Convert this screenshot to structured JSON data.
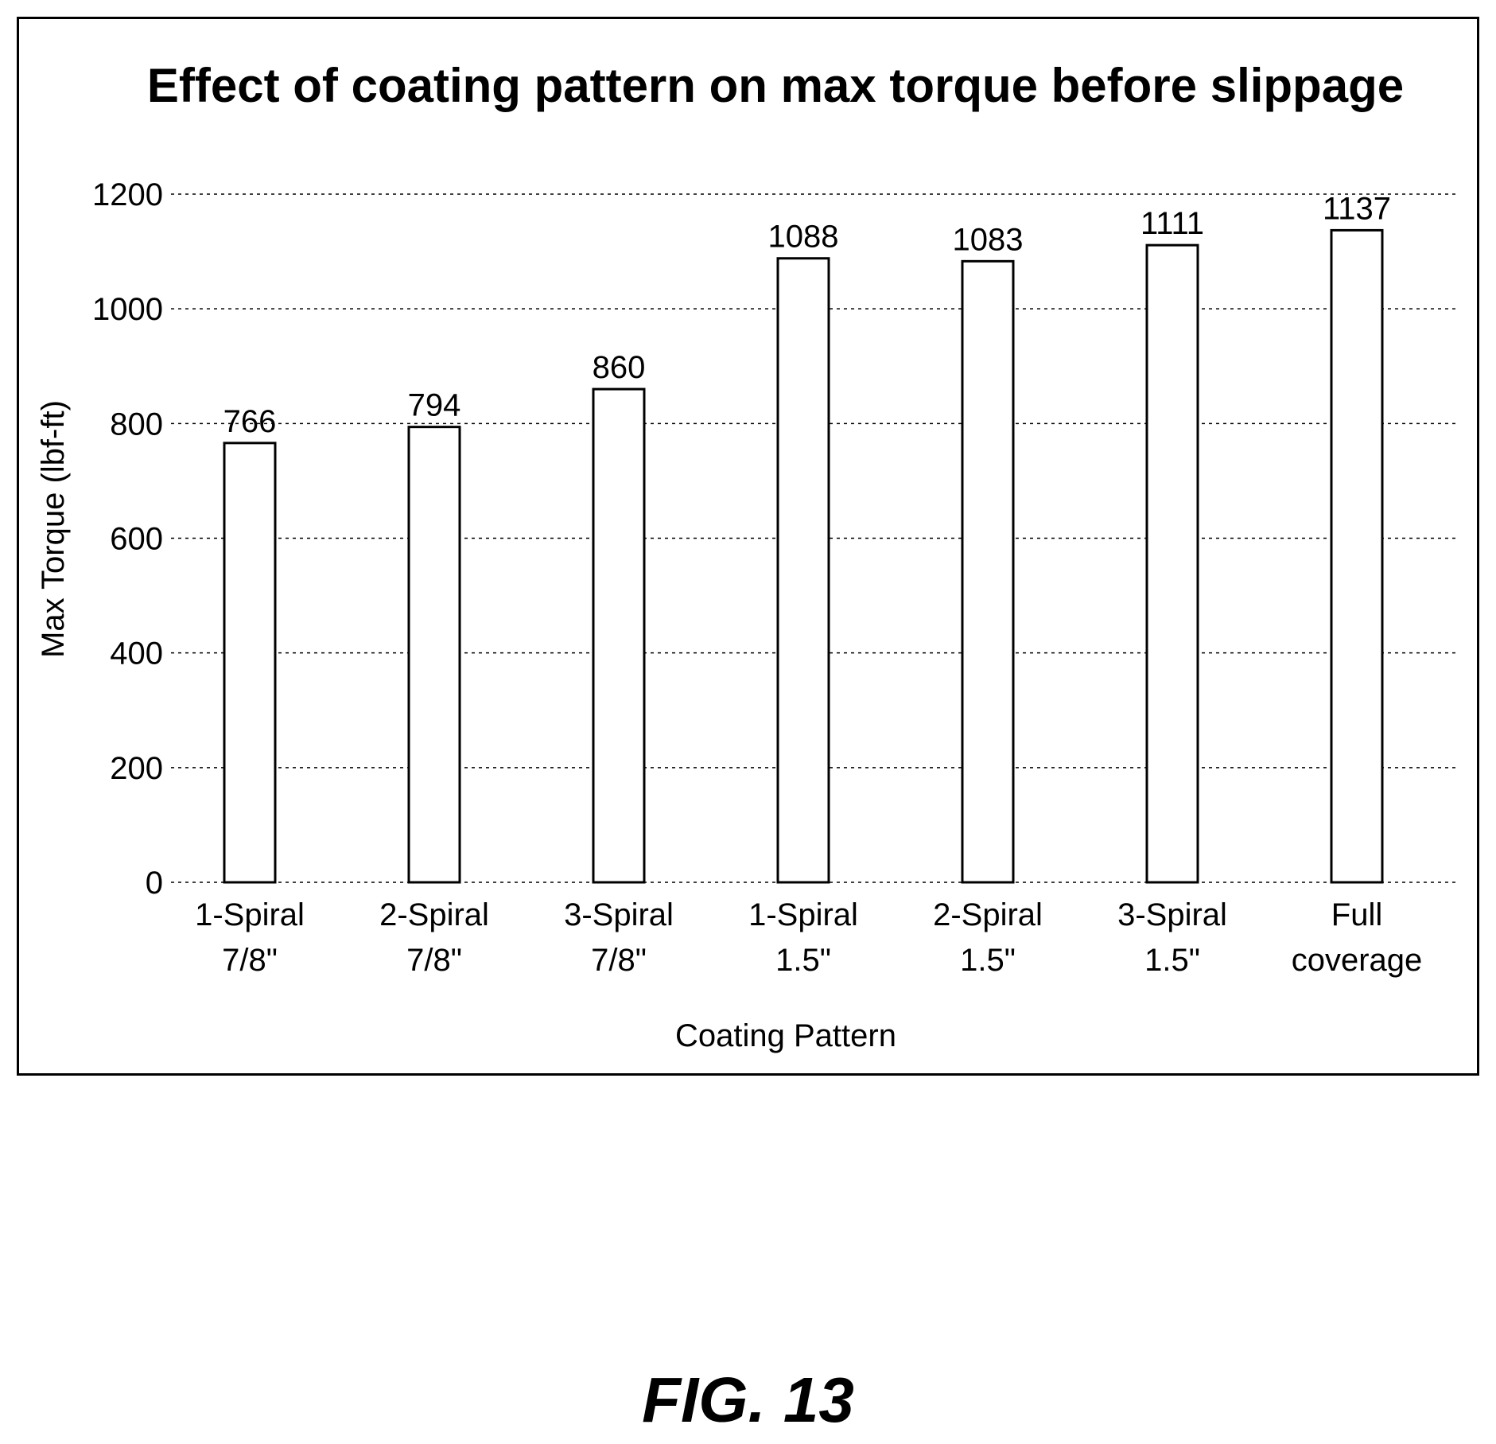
{
  "figure_label": "FIG. 13",
  "chart_data": {
    "type": "bar",
    "title": "Effect of coating pattern on max torque before slippage",
    "xlabel": "Coating Pattern",
    "ylabel": "Max Torque (lbf-ft)",
    "categories": [
      [
        "1-Spiral",
        "7/8\""
      ],
      [
        "2-Spiral",
        "7/8\""
      ],
      [
        "3-Spiral",
        "7/8\""
      ],
      [
        "1-Spiral",
        "1.5\""
      ],
      [
        "2-Spiral",
        "1.5\""
      ],
      [
        "3-Spiral",
        "1.5\""
      ],
      [
        "Full",
        "coverage"
      ]
    ],
    "values": [
      766,
      794,
      860,
      1088,
      1083,
      1111,
      1137
    ],
    "data_labels": [
      "766",
      "794",
      "860",
      "1088",
      "1083",
      "1111",
      "1137"
    ],
    "ylim": [
      0,
      1200
    ],
    "yticks": [
      0,
      200,
      400,
      600,
      800,
      1000,
      1200
    ],
    "grid": true,
    "grid_style": "dotted horizontal",
    "legend": "none",
    "bar_fill": "#ffffff",
    "bar_stroke": "#000000"
  }
}
